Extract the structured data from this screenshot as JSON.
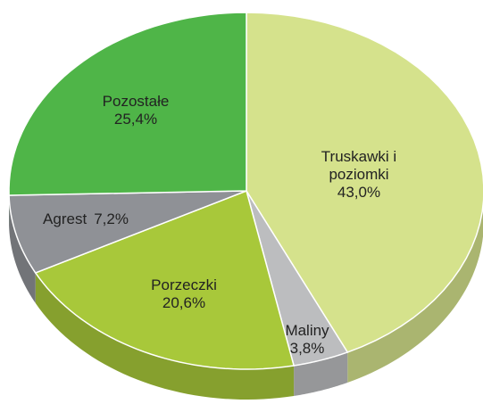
{
  "chart_data": {
    "type": "pie",
    "categories": [
      "Truskawki i poziomki",
      "Maliny",
      "Porzeczki",
      "Agrest",
      "Pozostałe"
    ],
    "values": [
      43.0,
      3.8,
      20.6,
      7.2,
      25.4
    ],
    "value_labels": [
      "43,0%",
      "3,8%",
      "20,6%",
      "7,2%",
      "25,4%"
    ],
    "colors": [
      "#d5e28c",
      "#bcbdbf",
      "#a8c83a",
      "#8f9196",
      "#4fb548"
    ]
  }
}
